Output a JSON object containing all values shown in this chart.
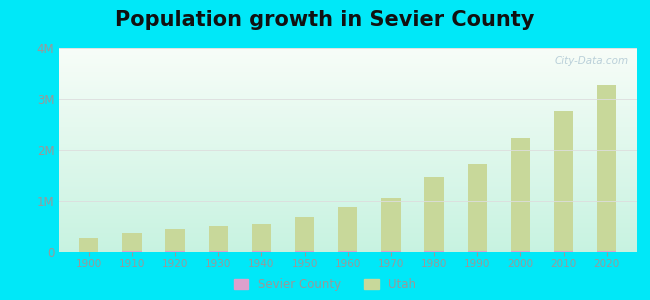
{
  "title": "Population growth in Sevier County",
  "title_fontsize": 15,
  "background_outer": "#00e8f8",
  "years": [
    1900,
    1910,
    1920,
    1930,
    1940,
    1950,
    1960,
    1970,
    1980,
    1990,
    2000,
    2010,
    2020
  ],
  "utah_population": [
    276749,
    373351,
    449396,
    507847,
    550310,
    688862,
    890627,
    1059273,
    1461037,
    1722850,
    2233169,
    2763885,
    3271616
  ],
  "sevier_population": [
    8277,
    9867,
    10725,
    10550,
    11000,
    10065,
    10565,
    13156,
    14727,
    15431,
    18842,
    20802,
    21522
  ],
  "utah_color": "#c8d89a",
  "sevier_color": "#dda0cc",
  "bar_width": 4.5,
  "ylim": [
    0,
    4000000
  ],
  "ytick_labels": [
    "0",
    "1M",
    "2M",
    "3M",
    "4M"
  ],
  "legend_sevier": "Sevier County",
  "legend_utah": "Utah",
  "watermark": "City-Data.com",
  "grid_color": "#dddddd",
  "tick_color": "#999999",
  "axis_label_color": "#999999",
  "legend_marker_color_sevier": "#dda0cc",
  "legend_marker_color_utah": "#c8d89a"
}
